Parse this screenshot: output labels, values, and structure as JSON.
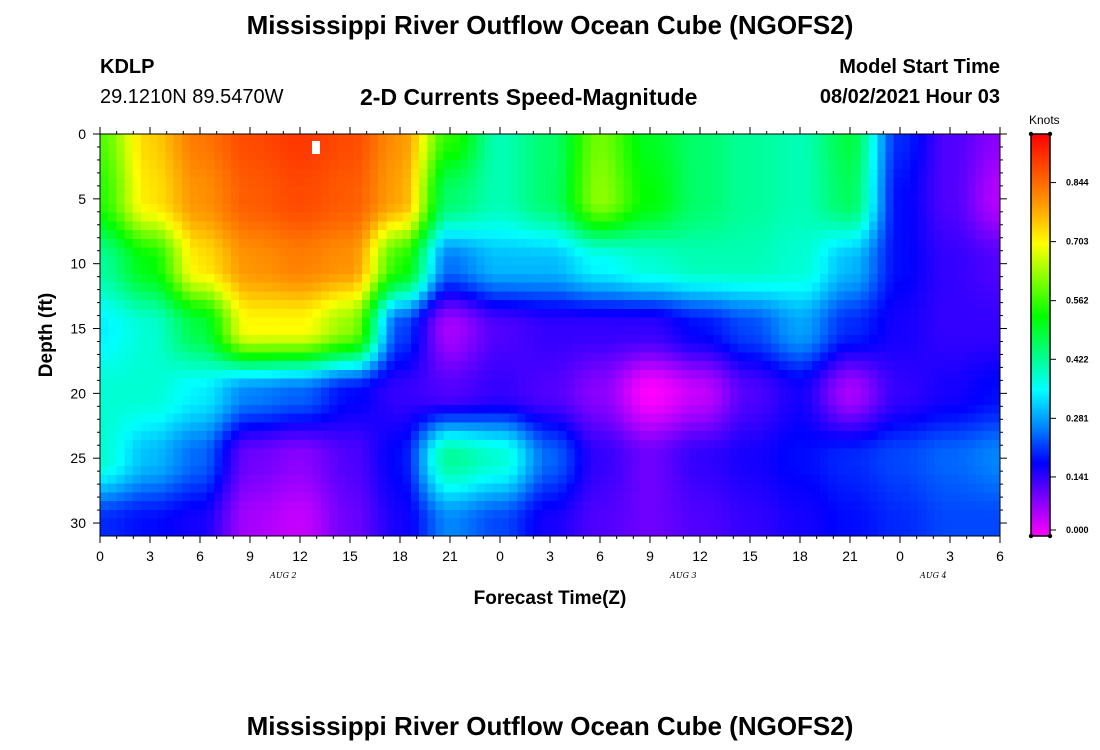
{
  "header": {
    "title": "Mississippi River Outflow Ocean Cube (NGOFS2)",
    "station_id": "KDLP",
    "coordinates": "29.1210N  89.5470W",
    "subtitle": "2-D Currents Speed-Magnitude",
    "model_label": "Model Start Time",
    "model_time": "08/02/2021 Hour 03"
  },
  "footer": {
    "title": "Mississippi River Outflow Ocean Cube (NGOFS2)"
  },
  "chart_data": {
    "type": "heatmap",
    "xlabel": "Forecast Time(Z)",
    "ylabel": "Depth (ft)",
    "x_ticks": [
      "0",
      "3",
      "6",
      "9",
      "12",
      "15",
      "18",
      "21",
      "0",
      "3",
      "6",
      "9",
      "12",
      "15",
      "18",
      "21",
      "0",
      "3",
      "6"
    ],
    "x_tick_hours": [
      0,
      3,
      6,
      9,
      12,
      15,
      18,
      21,
      24,
      27,
      30,
      33,
      36,
      39,
      42,
      45,
      48,
      51,
      54
    ],
    "date_labels": [
      {
        "label": "AUG 2",
        "hour": 11
      },
      {
        "label": "AUG 3",
        "hour": 35
      },
      {
        "label": "AUG 4",
        "hour": 50
      }
    ],
    "xlim": [
      0,
      54
    ],
    "y_ticks": [
      0,
      5,
      10,
      15,
      20,
      25,
      30
    ],
    "ylim": [
      0,
      31
    ],
    "colorbar": {
      "units": "Knots",
      "tick_labels": [
        "0.000",
        "0.141",
        "0.281",
        "0.422",
        "0.562",
        "0.703",
        "0.844"
      ],
      "tick_values": [
        0.0,
        0.141,
        0.281,
        0.422,
        0.562,
        0.703,
        0.844
      ],
      "range": [
        0.0,
        0.96
      ],
      "colors": [
        "#ff00ff",
        "#8000ff",
        "#0000ff",
        "#0088ff",
        "#00ffff",
        "#00ff80",
        "#00ff00",
        "#80ff00",
        "#ffff00",
        "#ffa000",
        "#ff5000",
        "#ff0000"
      ]
    },
    "time_hours": [
      0,
      3,
      6,
      9,
      12,
      15,
      18,
      21,
      24,
      27,
      30,
      33,
      36,
      39,
      42,
      45,
      48,
      51,
      54
    ],
    "depths_ft": [
      0,
      5,
      10,
      15,
      20,
      25,
      30
    ],
    "speed_knots": [
      [
        0.58,
        0.74,
        0.83,
        0.88,
        0.9,
        0.88,
        0.8,
        0.55,
        0.4,
        0.45,
        0.6,
        0.5,
        0.45,
        0.42,
        0.4,
        0.48,
        0.2,
        0.12,
        0.08
      ],
      [
        0.55,
        0.72,
        0.8,
        0.86,
        0.88,
        0.86,
        0.78,
        0.45,
        0.4,
        0.45,
        0.62,
        0.52,
        0.45,
        0.42,
        0.4,
        0.46,
        0.18,
        0.12,
        0.05
      ],
      [
        0.42,
        0.52,
        0.72,
        0.8,
        0.82,
        0.8,
        0.55,
        0.25,
        0.3,
        0.3,
        0.35,
        0.38,
        0.4,
        0.4,
        0.38,
        0.3,
        0.18,
        0.14,
        0.12
      ],
      [
        0.34,
        0.38,
        0.48,
        0.7,
        0.7,
        0.62,
        0.22,
        0.06,
        0.12,
        0.14,
        0.14,
        0.14,
        0.18,
        0.22,
        0.28,
        0.2,
        0.16,
        0.14,
        0.14
      ],
      [
        0.38,
        0.38,
        0.34,
        0.26,
        0.24,
        0.18,
        0.14,
        0.12,
        0.14,
        0.12,
        0.08,
        0.0,
        0.04,
        0.12,
        0.16,
        0.06,
        0.14,
        0.16,
        0.18
      ],
      [
        0.38,
        0.3,
        0.24,
        0.1,
        0.08,
        0.12,
        0.18,
        0.42,
        0.38,
        0.24,
        0.14,
        0.1,
        0.14,
        0.16,
        0.18,
        0.2,
        0.22,
        0.24,
        0.26
      ],
      [
        0.2,
        0.18,
        0.16,
        0.06,
        0.04,
        0.1,
        0.16,
        0.26,
        0.22,
        0.16,
        0.12,
        0.1,
        0.12,
        0.14,
        0.16,
        0.18,
        0.2,
        0.22,
        0.22
      ]
    ]
  }
}
